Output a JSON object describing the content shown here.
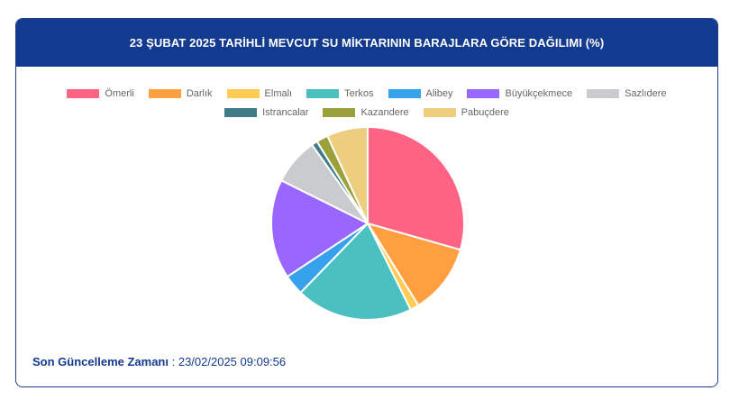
{
  "header": {
    "title": "23 ŞUBAT 2025 TARİHLİ MEVCUT SU MİKTARININ BARAJLARA GÖRE DAĞILIMI (%)",
    "background": "#123a8e"
  },
  "footer": {
    "updated_label": "Son Güncelleme Zamanı",
    "separator": " : ",
    "updated_value": "23/02/2025 09:09:56"
  },
  "chart_data": {
    "type": "pie",
    "title": "23 ŞUBAT 2025 TARİHLİ MEVCUT SU MİKTARININ BARAJLARA GÖRE DAĞILIMI (%)",
    "legend_position": "top",
    "start_angle": "top, clockwise",
    "categories": [
      "Ömerli",
      "Darlık",
      "Elmalı",
      "Terkos",
      "Alibey",
      "Büyükçekmece",
      "Sazlıdere",
      "Istrancalar",
      "Kazandere",
      "Pabuçdere"
    ],
    "values": [
      30.0,
      12.0,
      1.5,
      20.0,
      3.5,
      17.0,
      8.0,
      1.0,
      2.0,
      7.0
    ],
    "colors": [
      "#ff6384",
      "#ff9f40",
      "#ffcd56",
      "#4bc0c0",
      "#36a2eb",
      "#9966ff",
      "#c9cbcf",
      "#3f7c85",
      "#9aa03a",
      "#edcd7e"
    ]
  }
}
